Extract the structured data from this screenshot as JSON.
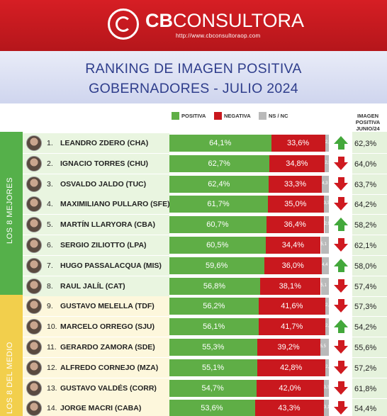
{
  "header": {
    "brand_cb": "CB",
    "brand_rest": "CONSULTORA",
    "url": "http://www.cbconsultoraop.com"
  },
  "title": {
    "line1": "RANKING DE IMAGEN POSITIVA",
    "line2": "GOBERNADORES - JULIO 2024"
  },
  "legend": {
    "positive": "POSITIVA",
    "negative": "NEGATIVA",
    "nsnc": "NS / NC"
  },
  "prev_column_header": [
    "IMAGEN",
    "POSITIVA",
    "JUNIO/24"
  ],
  "groups": {
    "top": "LOS 8 MEJORES",
    "middle": "LOS 8 DEL MEDIO"
  },
  "colors": {
    "positive": "#5fae46",
    "negative": "#c9181e",
    "nsnc": "#b9b9b9",
    "header_red": "#d61e24",
    "title_blue": "#2f3e8c",
    "group_top": "#55b04a",
    "group_middle": "#f2cf4c"
  },
  "chart_data": {
    "type": "bar",
    "stacked": true,
    "orientation": "horizontal",
    "categories": [
      "LEANDRO ZDERO (CHA)",
      "IGNACIO TORRES (CHU)",
      "OSVALDO JALDO (TUC)",
      "MAXIMILIANO PULLARO (SFE)",
      "MARTÍN LLARYORA (CBA)",
      "SERGIO ZILIOTTO (LPA)",
      "HUGO PASSALACQUA (MIS)",
      "RAUL JALÍL (CAT)",
      "GUSTAVO MELELLA (TDF)",
      "MARCELO ORREGO (SJU)",
      "GERARDO ZAMORA (SDE)",
      "ALFREDO CORNEJO (MZA)",
      "GUSTAVO VALDÉS (CORR)",
      "JORGE MACRI (CABA)"
    ],
    "ranks": [
      "1.",
      "2.",
      "3.",
      "4.",
      "5.",
      "6.",
      "7.",
      "8.",
      "9.",
      "10.",
      "11.",
      "12.",
      "13.",
      "14."
    ],
    "series": [
      {
        "name": "POSITIVA",
        "values": [
          64.1,
          62.7,
          62.4,
          61.7,
          60.7,
          60.5,
          59.6,
          56.8,
          56.2,
          56.1,
          55.3,
          55.1,
          54.7,
          53.6
        ],
        "labels": [
          "64,1%",
          "62,7%",
          "62,4%",
          "61,7%",
          "60,7%",
          "60,5%",
          "59,6%",
          "56,8%",
          "56,2%",
          "56,1%",
          "55,3%",
          "55,1%",
          "54,7%",
          "53,6%"
        ]
      },
      {
        "name": "NEGATIVA",
        "values": [
          33.6,
          34.8,
          33.3,
          35.0,
          36.4,
          34.4,
          36.0,
          38.1,
          41.6,
          41.7,
          39.2,
          42.8,
          42.0,
          43.3
        ],
        "labels": [
          "33,6%",
          "34,8%",
          "33,3%",
          "35,0%",
          "36,4%",
          "34,4%",
          "36,0%",
          "38,1%",
          "41,6%",
          "41,7%",
          "39,2%",
          "42,8%",
          "42,0%",
          "43,3%"
        ]
      },
      {
        "name": "NS / NC",
        "values": [
          2.3,
          2.5,
          4.3,
          3.3,
          2.9,
          5.1,
          4.4,
          5.1,
          2.2,
          2.2,
          5.5,
          2.1,
          3.3,
          3.1
        ],
        "labels": [
          "2,3",
          "2,5",
          "4,3",
          "3,3",
          "2,9",
          "5,1",
          "4,4",
          "5,1",
          "2,2",
          "2,2",
          "5,5",
          "2,1",
          "3,3",
          "3,1"
        ]
      }
    ],
    "previous": {
      "name": "IMAGEN POSITIVA JUNIO/24",
      "values": [
        62.3,
        64.0,
        63.7,
        64.2,
        58.2,
        62.1,
        58.0,
        57.4,
        57.3,
        54.2,
        55.6,
        57.2,
        61.8,
        54.4
      ],
      "labels": [
        "62,3%",
        "64,0%",
        "63,7%",
        "64,2%",
        "58,2%",
        "62,1%",
        "58,0%",
        "57,4%",
        "57,3%",
        "54,2%",
        "55,6%",
        "57,2%",
        "61,8%",
        "54,4%"
      ]
    },
    "trend": [
      "up",
      "down",
      "down",
      "down",
      "up",
      "down",
      "up",
      "down",
      "down",
      "up",
      "down",
      "down",
      "down",
      "down"
    ],
    "xlim": [
      0,
      100
    ],
    "grid": false,
    "legend_position": "top-center"
  }
}
